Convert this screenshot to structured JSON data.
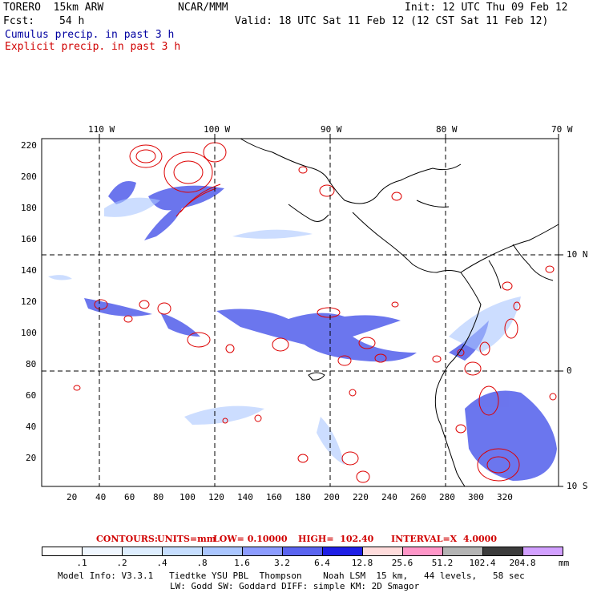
{
  "header": {
    "model": "TORERO  15km ARW",
    "org": "NCAR/MMM",
    "init": "Init: 12 UTC Thu 09 Feb 12",
    "fcst_label": "Fcst:",
    "fcst_value": "54 h",
    "valid": "Valid: 18 UTC Sat 11 Feb 12 (12 CST Sat 11 Feb 12)",
    "cumulus": "Cumulus precip. in past 3 h",
    "explicit": "Explicit precip. in past 3 h"
  },
  "map": {
    "lon_labels": [
      "110 W",
      "100 W",
      "90 W",
      "80 W",
      "70 W"
    ],
    "lat_labels": [
      "10 N",
      "0",
      "10 S"
    ],
    "x_ticks": [
      "20",
      "40",
      "60",
      "80",
      "100",
      "120",
      "140",
      "160",
      "180",
      "200",
      "220",
      "240",
      "260",
      "280",
      "300",
      "320"
    ],
    "y_ticks": [
      "220",
      "200",
      "180",
      "160",
      "140",
      "120",
      "100",
      "80",
      "60",
      "40",
      "20"
    ],
    "colors": {
      "cumulus": "#0000cc",
      "explicit": "#dd0000",
      "coast": "#000000"
    }
  },
  "contours_line": {
    "label": "CONTOURS:",
    "units": "UNITS=mm",
    "low": "LOW= 0.10000",
    "high": "HIGH=  102.40",
    "interval": "INTERVAL=X  4.0000"
  },
  "colorbar": {
    "labels": [
      ".1",
      ".2",
      ".4",
      ".8",
      "1.6",
      "3.2",
      "6.4",
      "12.8",
      "25.6",
      "51.2",
      "102.4",
      "204.8"
    ],
    "unit": "mm",
    "colors": [
      "#ffffff",
      "#f0f7ff",
      "#deeeff",
      "#c6deff",
      "#aac6ff",
      "#8c9cff",
      "#5a64f0",
      "#1e1ee6",
      "#ffdcdc",
      "#ff96c8",
      "#b4b4b4",
      "#3c3c3c",
      "#d2a0ff"
    ]
  },
  "footer": {
    "line1": "Model Info: V3.3.1   Tiedtke YSU PBL  Thompson    Noah LSM  15 km,   44 levels,   58 sec",
    "line2": "LW: Godd SW: Goddard DIFF: simple KM: 2D Smagor"
  }
}
